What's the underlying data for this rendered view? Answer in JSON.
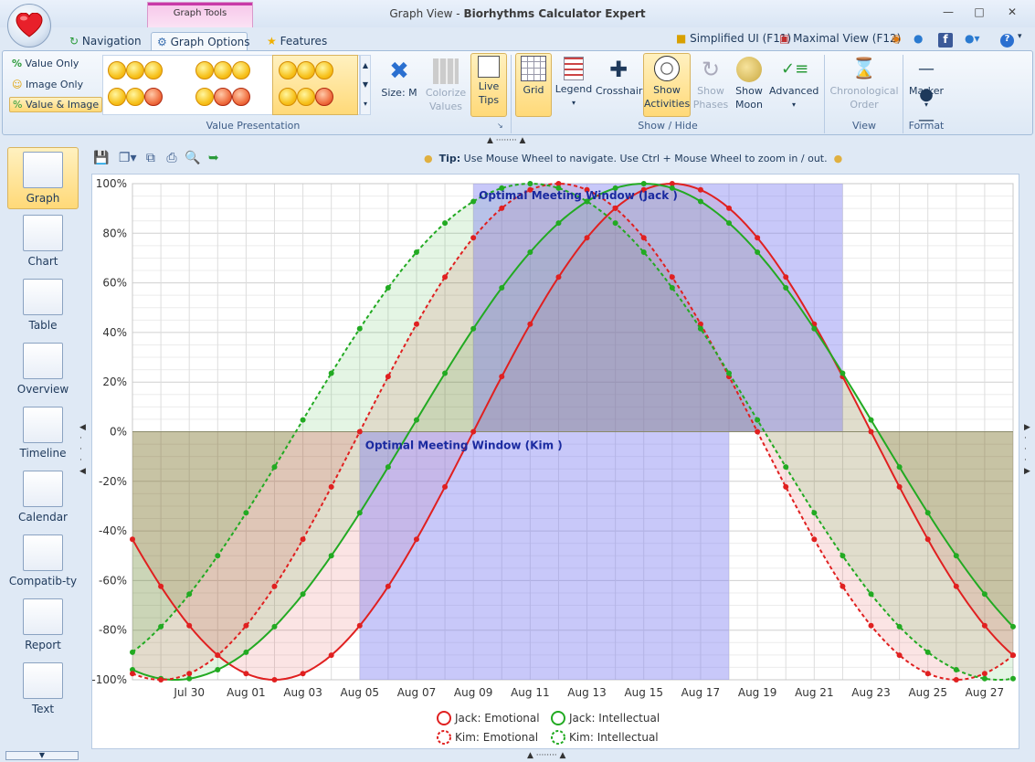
{
  "window": {
    "context_tab": "Graph Tools",
    "title_view": "Graph View",
    "title_sep": " - ",
    "title_app": "Biorhythms Calculator Expert"
  },
  "tabs": [
    {
      "label": "Navigation"
    },
    {
      "label": "Graph Options"
    },
    {
      "label": "Features"
    }
  ],
  "quick_access": {
    "simplified": "Simplified UI (F11)",
    "maximal": "Maximal View (F12)"
  },
  "ribbon": {
    "value_presentation": {
      "options": [
        "Value Only",
        "Image Only",
        "Value & Image"
      ],
      "selected": "Value & Image",
      "size_label": "Size: M",
      "colorize_1": "Colorize",
      "colorize_2": "Values",
      "live_1": "Live",
      "live_2": "Tips",
      "group_label": "Value Presentation"
    },
    "show_hide": {
      "grid": "Grid",
      "legend": "Legend",
      "crosshair": "Crosshair",
      "activities_1": "Show",
      "activities_2": "Activities",
      "phases_1": "Show",
      "phases_2": "Phases",
      "moon_1": "Show",
      "moon_2": "Moon",
      "advanced": "Advanced",
      "group_label": "Show / Hide"
    },
    "view": {
      "chrono_1": "Chronological",
      "chrono_2": "Order",
      "group_label": "View"
    },
    "format": {
      "marker": "Marker",
      "group_label": "Format"
    }
  },
  "sidebar": {
    "items": [
      {
        "label": "Graph"
      },
      {
        "label": "Chart"
      },
      {
        "label": "Table"
      },
      {
        "label": "Overview"
      },
      {
        "label": "Timeline"
      },
      {
        "label": "Calendar"
      },
      {
        "label": "Compatib-ty"
      },
      {
        "label": "Report"
      },
      {
        "label": "Text"
      }
    ],
    "selected": "Graph"
  },
  "tip": {
    "bold": "Tip:",
    "text": "Use Mouse Wheel to navigate. Use Ctrl + Mouse Wheel to zoom in / out."
  },
  "colors": {
    "emotional": "#e02020",
    "intellectual": "#22aa22",
    "window": "#7b7bf0",
    "accent": "#d9b45e"
  },
  "chart_data": {
    "type": "line",
    "ylim": [
      -100,
      100
    ],
    "yticks": [
      "100%",
      "80%",
      "60%",
      "40%",
      "20%",
      "0%",
      "-20%",
      "-40%",
      "-60%",
      "-80%",
      "-100%"
    ],
    "xlim": [
      "2014-07-28",
      "2014-08-28"
    ],
    "xticks": [
      {
        "date": "2014-07-30",
        "label": "Jul 30"
      },
      {
        "date": "2014-08-01",
        "label": "Aug 01"
      },
      {
        "date": "2014-08-03",
        "label": "Aug 03"
      },
      {
        "date": "2014-08-05",
        "label": "Aug 05"
      },
      {
        "date": "2014-08-07",
        "label": "Aug 07"
      },
      {
        "date": "2014-08-09",
        "label": "Aug 09"
      },
      {
        "date": "2014-08-11",
        "label": "Aug 11"
      },
      {
        "date": "2014-08-13",
        "label": "Aug 13"
      },
      {
        "date": "2014-08-15",
        "label": "Aug 15"
      },
      {
        "date": "2014-08-17",
        "label": "Aug 17"
      },
      {
        "date": "2014-08-19",
        "label": "Aug 19"
      },
      {
        "date": "2014-08-21",
        "label": "Aug 21"
      },
      {
        "date": "2014-08-23",
        "label": "Aug 23"
      },
      {
        "date": "2014-08-25",
        "label": "Aug 25"
      },
      {
        "date": "2014-08-27",
        "label": "Aug 27"
      }
    ],
    "grid": true,
    "legend_position": "bottom",
    "series": [
      {
        "name": "Jack: Emotional",
        "kind": "emotional",
        "style": "solid",
        "peak_date": "2014-08-16",
        "period_days": 28
      },
      {
        "name": "Jack: Intellectual",
        "kind": "intellectual",
        "style": "solid",
        "peak_date": "2014-08-15",
        "period_days": 33
      },
      {
        "name": "Kim: Emotional",
        "kind": "emotional",
        "style": "dotted",
        "peak_date": "2014-08-12",
        "period_days": 28
      },
      {
        "name": "Kim: Intellectual",
        "kind": "intellectual",
        "style": "dotted",
        "peak_date": "2014-08-11",
        "period_days": 33
      }
    ],
    "windows": [
      {
        "label": "Optimal Meeting Window (Jack )",
        "start": "2014-08-09",
        "end": "2014-08-22",
        "range": [
          0,
          100
        ]
      },
      {
        "label": "Optimal Meeting Window (Kim )",
        "start": "2014-08-05",
        "end": "2014-08-18",
        "range": [
          -100,
          0
        ]
      }
    ]
  }
}
